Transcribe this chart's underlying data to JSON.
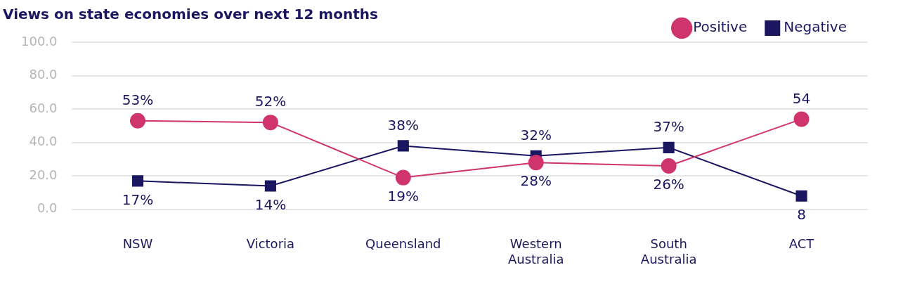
{
  "chart_data": {
    "type": "line",
    "title": "Views on state economies over next 12 months",
    "categories": [
      "NSW",
      "Victoria",
      "Queensland",
      "Western Australia",
      "South Australia",
      "ACT"
    ],
    "series": [
      {
        "name": "Positive",
        "color": "#d0346c",
        "marker": "circle",
        "values": [
          53,
          52,
          19,
          28,
          26,
          54
        ],
        "value_labels": [
          "53%",
          "52%",
          "19%",
          "28%",
          "26%",
          "54"
        ]
      },
      {
        "name": "Negative",
        "color": "#1b1660",
        "marker": "square",
        "values": [
          17,
          14,
          38,
          32,
          37,
          8
        ],
        "value_labels": [
          "17%",
          "14%",
          "38%",
          "32%",
          "37%",
          "8"
        ]
      }
    ],
    "ylim": [
      0,
      100
    ],
    "yticks": [
      {
        "value": 0,
        "label": "0.0"
      },
      {
        "value": 20,
        "label": "20.0"
      },
      {
        "value": 40,
        "label": "40.0"
      },
      {
        "value": 60,
        "label": "60.0"
      },
      {
        "value": 80,
        "label": "80.0"
      },
      {
        "value": 100,
        "label": "100.0"
      }
    ],
    "grid": "y",
    "legend": "top right",
    "line_style": "solid"
  }
}
